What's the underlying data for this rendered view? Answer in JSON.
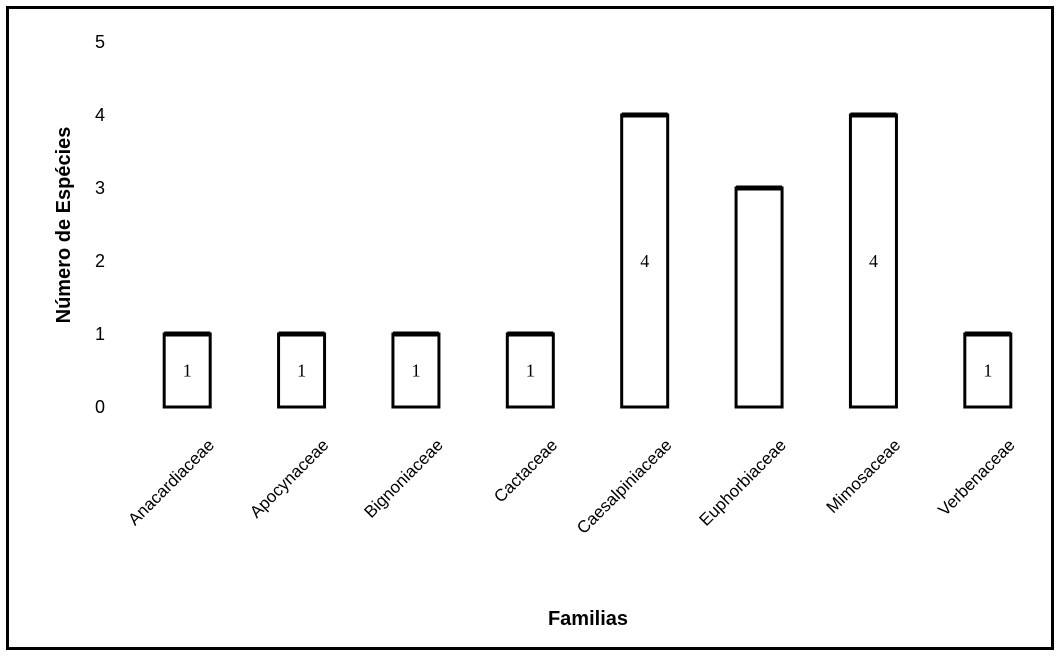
{
  "chart_data": {
    "type": "bar",
    "title": "",
    "xlabel": "Familias",
    "ylabel": "Número de Espécies",
    "categories": [
      "Anacardiaceae",
      "Apocynaceae",
      "Bignoniaceae",
      "Cactaceae",
      "Caesalpiniaceae",
      "Euphorbiaceae",
      "Mimosaceae",
      "Verbenaceae"
    ],
    "values": [
      1,
      1,
      1,
      1,
      4,
      3,
      4,
      1
    ],
    "data_labels": [
      "1",
      "1",
      "1",
      "1",
      "4",
      "",
      "4",
      "1"
    ],
    "ylim": [
      0,
      5
    ],
    "yticks": [
      0,
      1,
      2,
      3,
      4,
      5
    ],
    "grid": false,
    "legend": "none",
    "colors": {
      "bar_fill": "#ffffff",
      "bar_stroke": "#000000",
      "frame": "#000000"
    }
  }
}
